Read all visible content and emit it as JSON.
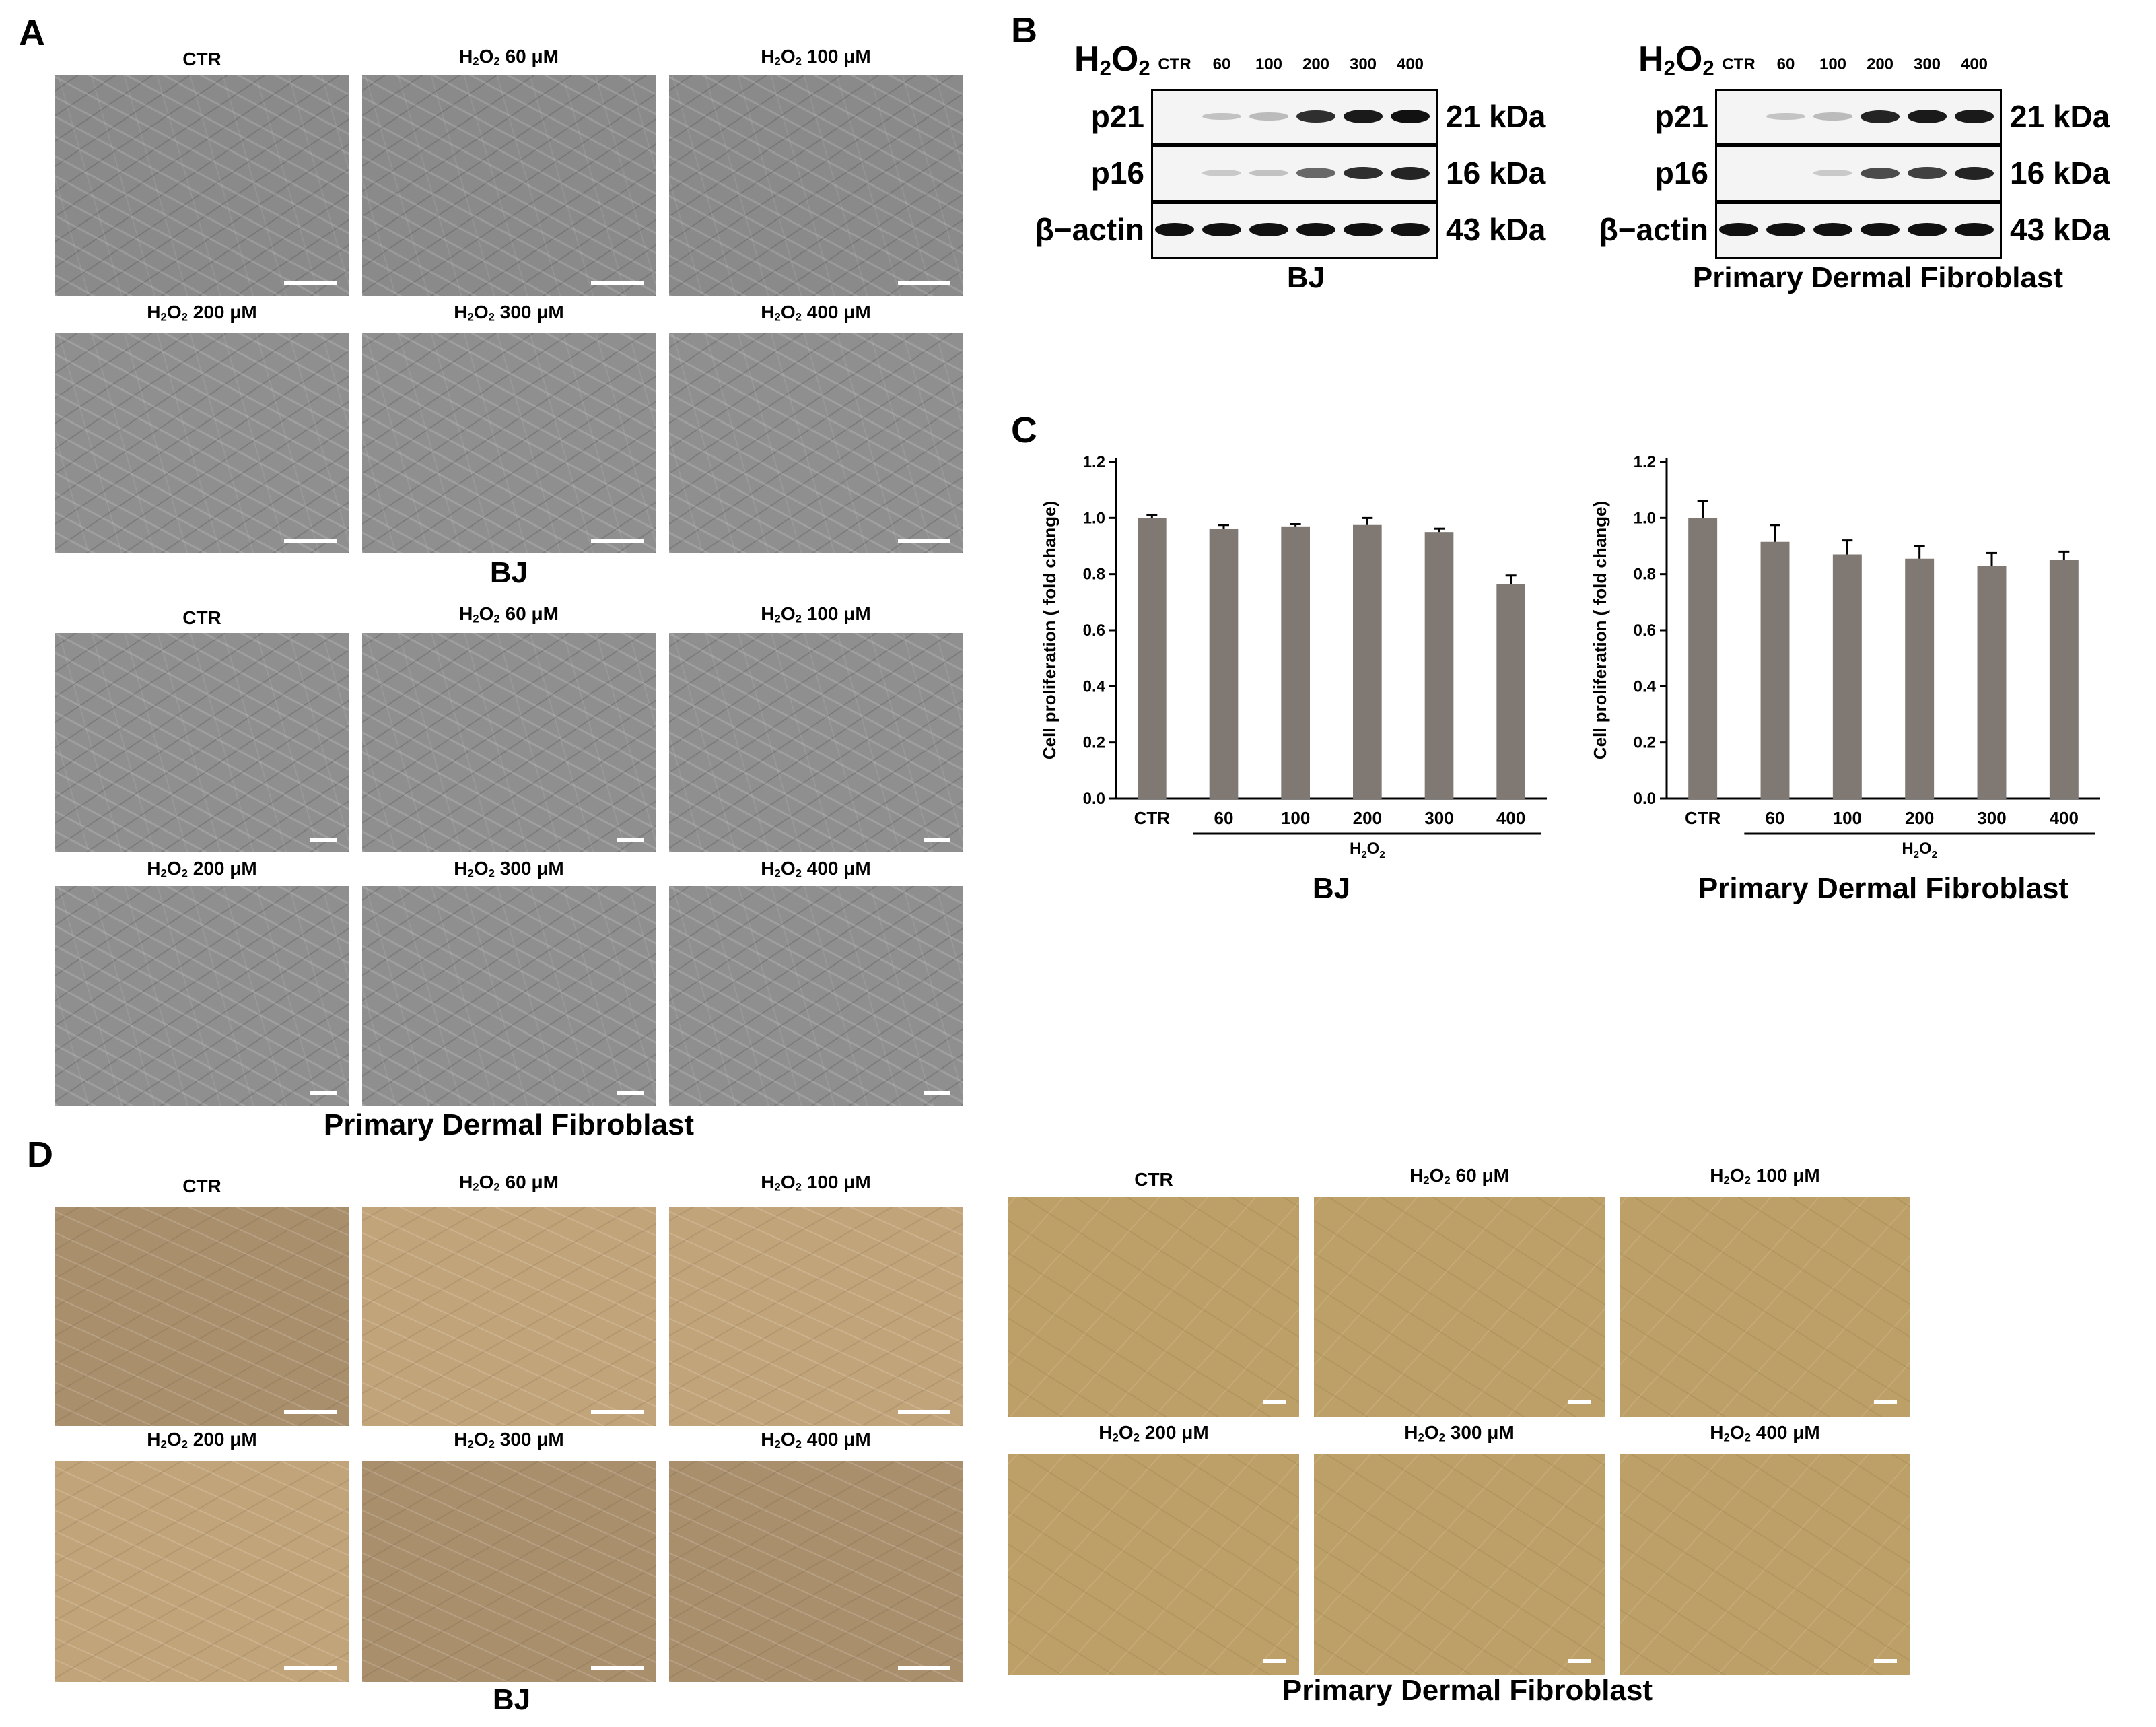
{
  "panels": {
    "a": "A",
    "b": "B",
    "c": "C",
    "d": "D"
  },
  "labels": {
    "ctr": "CTR",
    "h2o2_prefix": "H",
    "h2o2_sub2": "2",
    "h2o2_o": "O",
    "c60": " 60 μM",
    "c100": " 100 μM",
    "c200": " 200 μM",
    "c300": " 300 μM",
    "c400": " 400 μM"
  },
  "groups": {
    "bj": "BJ",
    "pdf": "Primary Dermal Fibroblast"
  },
  "blots": {
    "lanes": [
      "CTR",
      "60",
      "100",
      "200",
      "300",
      "400"
    ],
    "rows": [
      {
        "name": "p21",
        "kda": "21 kDa"
      },
      {
        "name": "p16",
        "kda": "16 kDa"
      },
      {
        "name": "β−actin",
        "kda": "43 kDa"
      }
    ],
    "intensity_bj": {
      "p21": [
        0.0,
        0.08,
        0.12,
        0.85,
        0.95,
        1.0
      ],
      "p16": [
        0.0,
        0.05,
        0.08,
        0.55,
        0.85,
        0.9
      ],
      "actin": [
        1.0,
        1.0,
        1.0,
        1.0,
        1.0,
        1.0
      ]
    },
    "intensity_pdf": {
      "p21": [
        0.0,
        0.07,
        0.12,
        0.9,
        0.95,
        0.95
      ],
      "p16": [
        0.0,
        0.0,
        0.05,
        0.7,
        0.75,
        0.9
      ],
      "actin": [
        1.0,
        1.0,
        1.0,
        1.0,
        1.0,
        1.0
      ]
    }
  },
  "chart_data": [
    {
      "type": "bar",
      "title": "BJ",
      "ylabel": "Cell proliferation ( fold change)",
      "xlabel": "H2O2",
      "categories": [
        "CTR",
        "60",
        "100",
        "200",
        "300",
        "400"
      ],
      "values": [
        1.0,
        0.96,
        0.97,
        0.975,
        0.95,
        0.765
      ],
      "errors": [
        0.01,
        0.015,
        0.008,
        0.025,
        0.012,
        0.03
      ],
      "ylim": [
        0,
        1.2
      ],
      "yticks": [
        "0.0",
        "0.2",
        "0.4",
        "0.6",
        "0.8",
        "1.0",
        "1.2"
      ],
      "bar_color": "#7f7873"
    },
    {
      "type": "bar",
      "title": "Primary Dermal Fibroblast",
      "ylabel": "Cell proliferation ( fold change)",
      "xlabel": "H2O2",
      "categories": [
        "CTR",
        "60",
        "100",
        "200",
        "300",
        "400"
      ],
      "values": [
        1.0,
        0.915,
        0.87,
        0.855,
        0.83,
        0.85
      ],
      "errors": [
        0.06,
        0.06,
        0.05,
        0.045,
        0.045,
        0.03
      ],
      "ylim": [
        0,
        1.2
      ],
      "yticks": [
        "0.0",
        "0.2",
        "0.4",
        "0.6",
        "0.8",
        "1.0",
        "1.2"
      ],
      "bar_color": "#7f7873"
    }
  ]
}
